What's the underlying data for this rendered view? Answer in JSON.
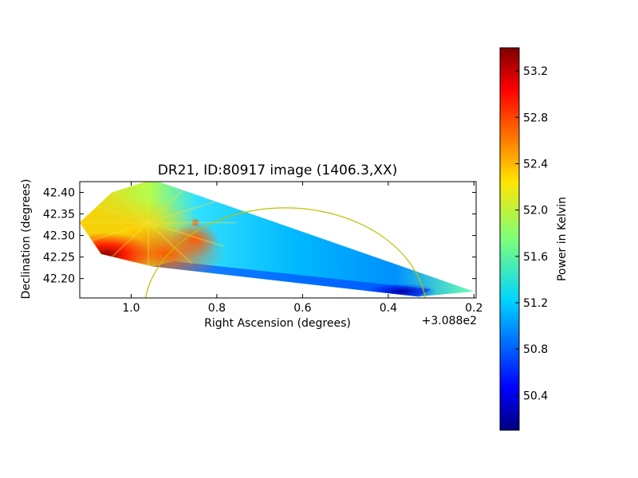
{
  "chart_data": {
    "type": "heatmap",
    "title": "DR21, ID:80917 image (1406.3,XX)",
    "xlabel": "Right Ascension (degrees)",
    "ylabel": "Declination (degrees)",
    "x_offset_label": "+3.088e2",
    "xlim": [
      1.12,
      0.195
    ],
    "ylim": [
      42.155,
      42.425
    ],
    "x_reversed": true,
    "x_ticks": [
      {
        "value": 1.0,
        "label": "1.0"
      },
      {
        "value": 0.8,
        "label": "0.8"
      },
      {
        "value": 0.6,
        "label": "0.6"
      },
      {
        "value": 0.4,
        "label": "0.4"
      },
      {
        "value": 0.2,
        "label": "0.2"
      }
    ],
    "y_ticks": [
      {
        "value": 42.2,
        "label": "42.20"
      },
      {
        "value": 42.25,
        "label": "42.25"
      },
      {
        "value": 42.3,
        "label": "42.30"
      },
      {
        "value": 42.35,
        "label": "42.35"
      },
      {
        "value": 42.4,
        "label": "42.40"
      }
    ],
    "coverage_polygon": [
      [
        1.045,
        42.4
      ],
      [
        0.96,
        42.427
      ],
      [
        0.93,
        42.423
      ],
      [
        0.2,
        42.17
      ],
      [
        0.33,
        42.158
      ],
      [
        0.95,
        42.228
      ],
      [
        1.07,
        42.257
      ],
      [
        1.12,
        42.33
      ]
    ],
    "hotspots": [
      {
        "ra": 1.06,
        "dec": 42.255,
        "power": 53.4
      },
      {
        "ra": 0.92,
        "dec": 42.258,
        "power": 53.0
      },
      {
        "ra": 0.85,
        "dec": 42.29,
        "power": 52.8
      },
      {
        "ra": 0.85,
        "dec": 42.33,
        "power": 52.4
      }
    ],
    "colorbar": {
      "label": "Power in Kelvin",
      "min": 50.1,
      "max": 53.4,
      "ticks": [
        {
          "value": 50.4,
          "label": "50.4"
        },
        {
          "value": 50.8,
          "label": "50.8"
        },
        {
          "value": 51.2,
          "label": "51.2"
        },
        {
          "value": 51.6,
          "label": "51.6"
        },
        {
          "value": 52.0,
          "label": "52.0"
        },
        {
          "value": 52.4,
          "label": "52.4"
        },
        {
          "value": 52.8,
          "label": "52.8"
        },
        {
          "value": 53.2,
          "label": "53.2"
        }
      ],
      "colormap": "jet"
    },
    "overlay_arc": {
      "center_ra": 0.64,
      "center_dec": 42.12,
      "radius_deg": 0.33,
      "color": "#bfbf00"
    },
    "grid": false
  }
}
